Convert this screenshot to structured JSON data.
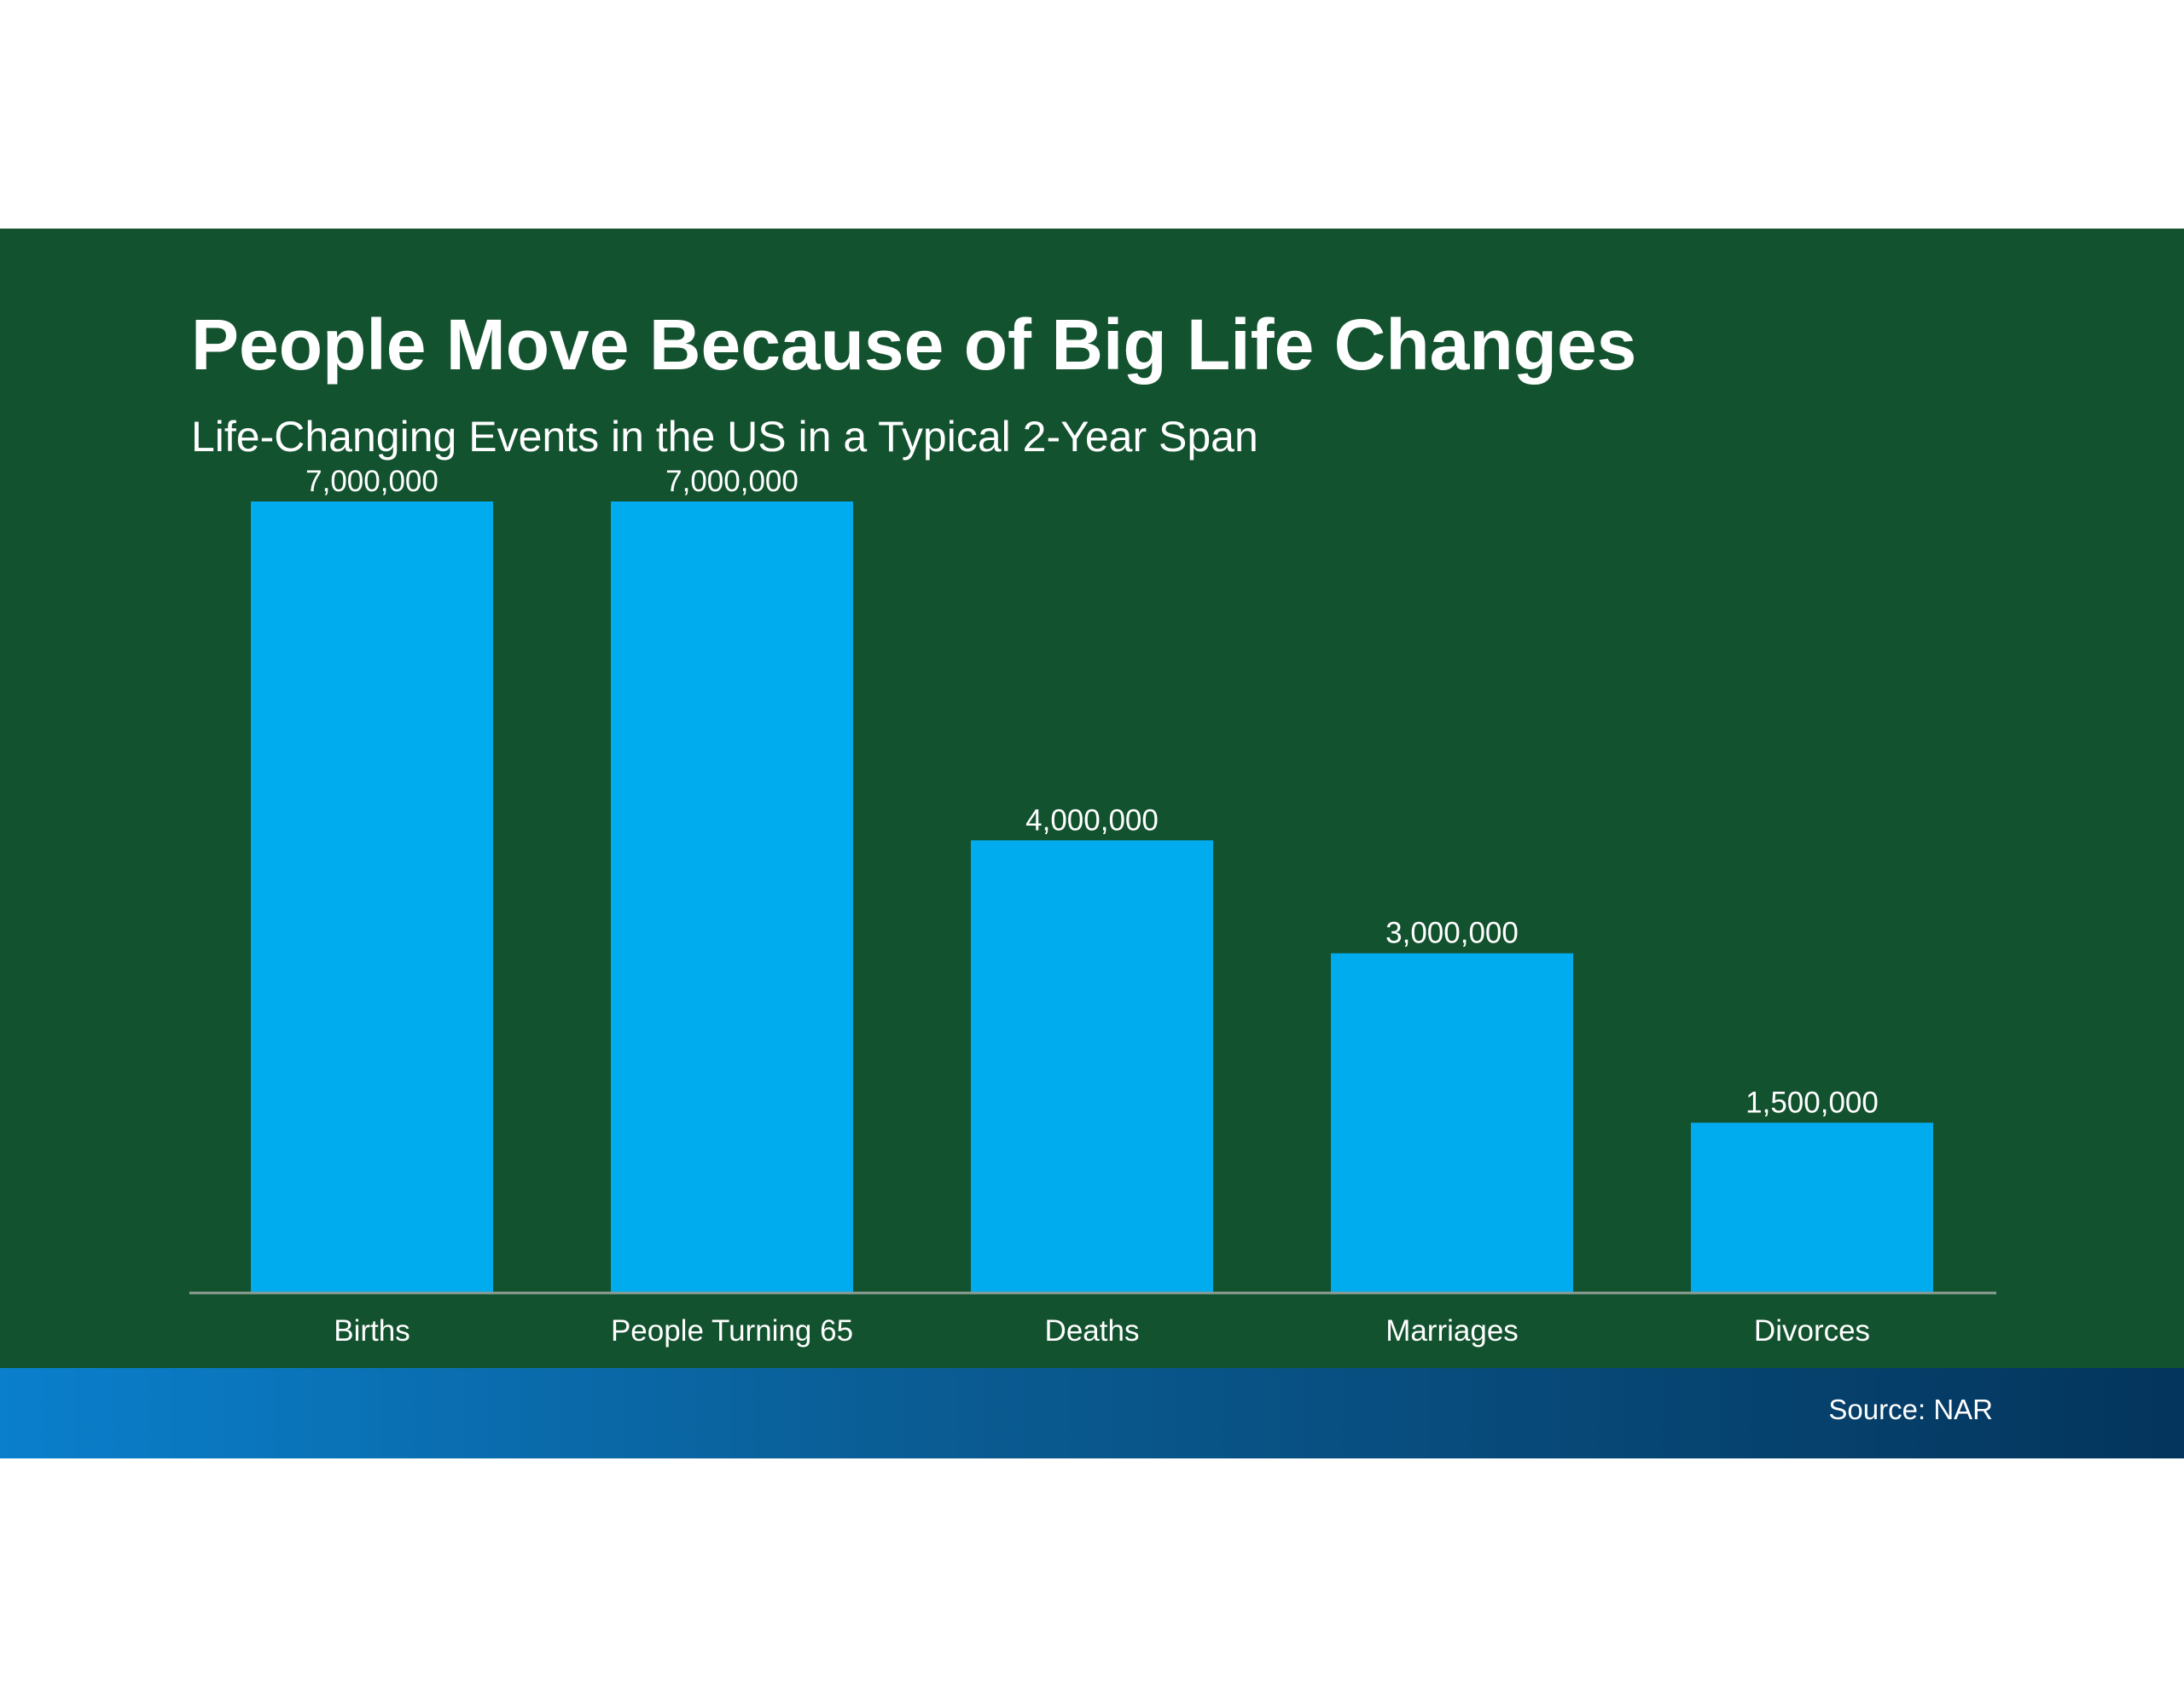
{
  "chart_data": {
    "type": "bar",
    "title": "People Move Because of Big Life Changes",
    "subtitle": "Life-Changing Events in the US in a Typical 2-Year Span",
    "categories": [
      "Births",
      "People Turning 65",
      "Deaths",
      "Marriages",
      "Divorces"
    ],
    "values": [
      7000000,
      7000000,
      4000000,
      3000000,
      1500000
    ],
    "data_labels": [
      "7,000,000",
      "7,000,000",
      "4,000,000",
      "3,000,000",
      "1,500,000"
    ],
    "xlabel": "",
    "ylabel": "",
    "ylim": [
      0,
      7000000
    ],
    "grid": false,
    "legend": "none",
    "colors": {
      "bar": "#00aced",
      "background": "#13522f",
      "axis_line": "#8f9f95",
      "text": "#ffffff"
    }
  },
  "footer": {
    "source": "Source: NAR"
  }
}
